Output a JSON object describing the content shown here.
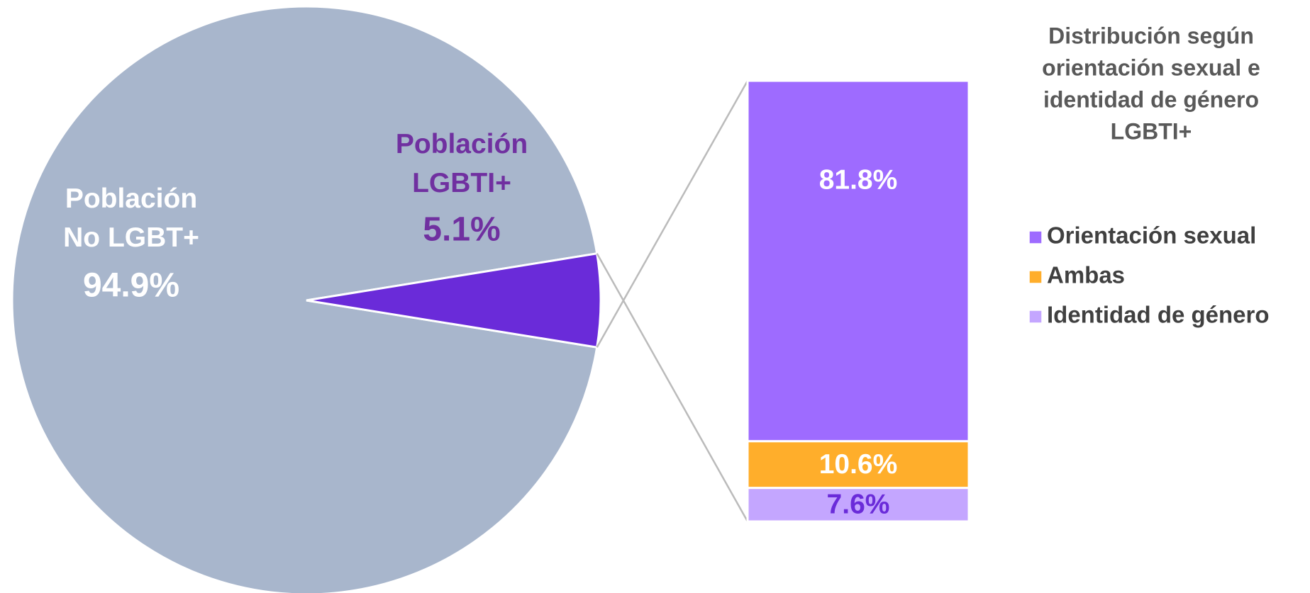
{
  "chart_data": [
    {
      "type": "pie",
      "categories": [
        "Población No LGBT+",
        "Población LGBTI+"
      ],
      "values": [
        94.9,
        5.1
      ],
      "value_labels": [
        "94.9%",
        "5.1%"
      ],
      "colors": [
        "#a8b6cc",
        "#6a2bd9"
      ],
      "label_colors": [
        "#ffffff",
        "#7030a0"
      ]
    },
    {
      "type": "stacked_bar",
      "title": [
        "Distribución según",
        "orientación sexual e",
        "identidad de género",
        "LGBTI+"
      ],
      "series": [
        {
          "name": "Orientación sexual",
          "color": "#9e6bff",
          "label_color": "#ffffff",
          "values": [
            81.8
          ],
          "value_labels": [
            "81.8%"
          ]
        },
        {
          "name": "Ambas",
          "color": "#ffae2b",
          "label_color": "#ffffff",
          "values": [
            10.6
          ],
          "value_labels": [
            "10.6%"
          ]
        },
        {
          "name": "Identidad de género",
          "color": "#c4a6ff",
          "label_color": "#6a2bd9",
          "values": [
            7.6
          ],
          "value_labels": [
            "7.6%"
          ]
        }
      ],
      "legend": "right"
    }
  ]
}
